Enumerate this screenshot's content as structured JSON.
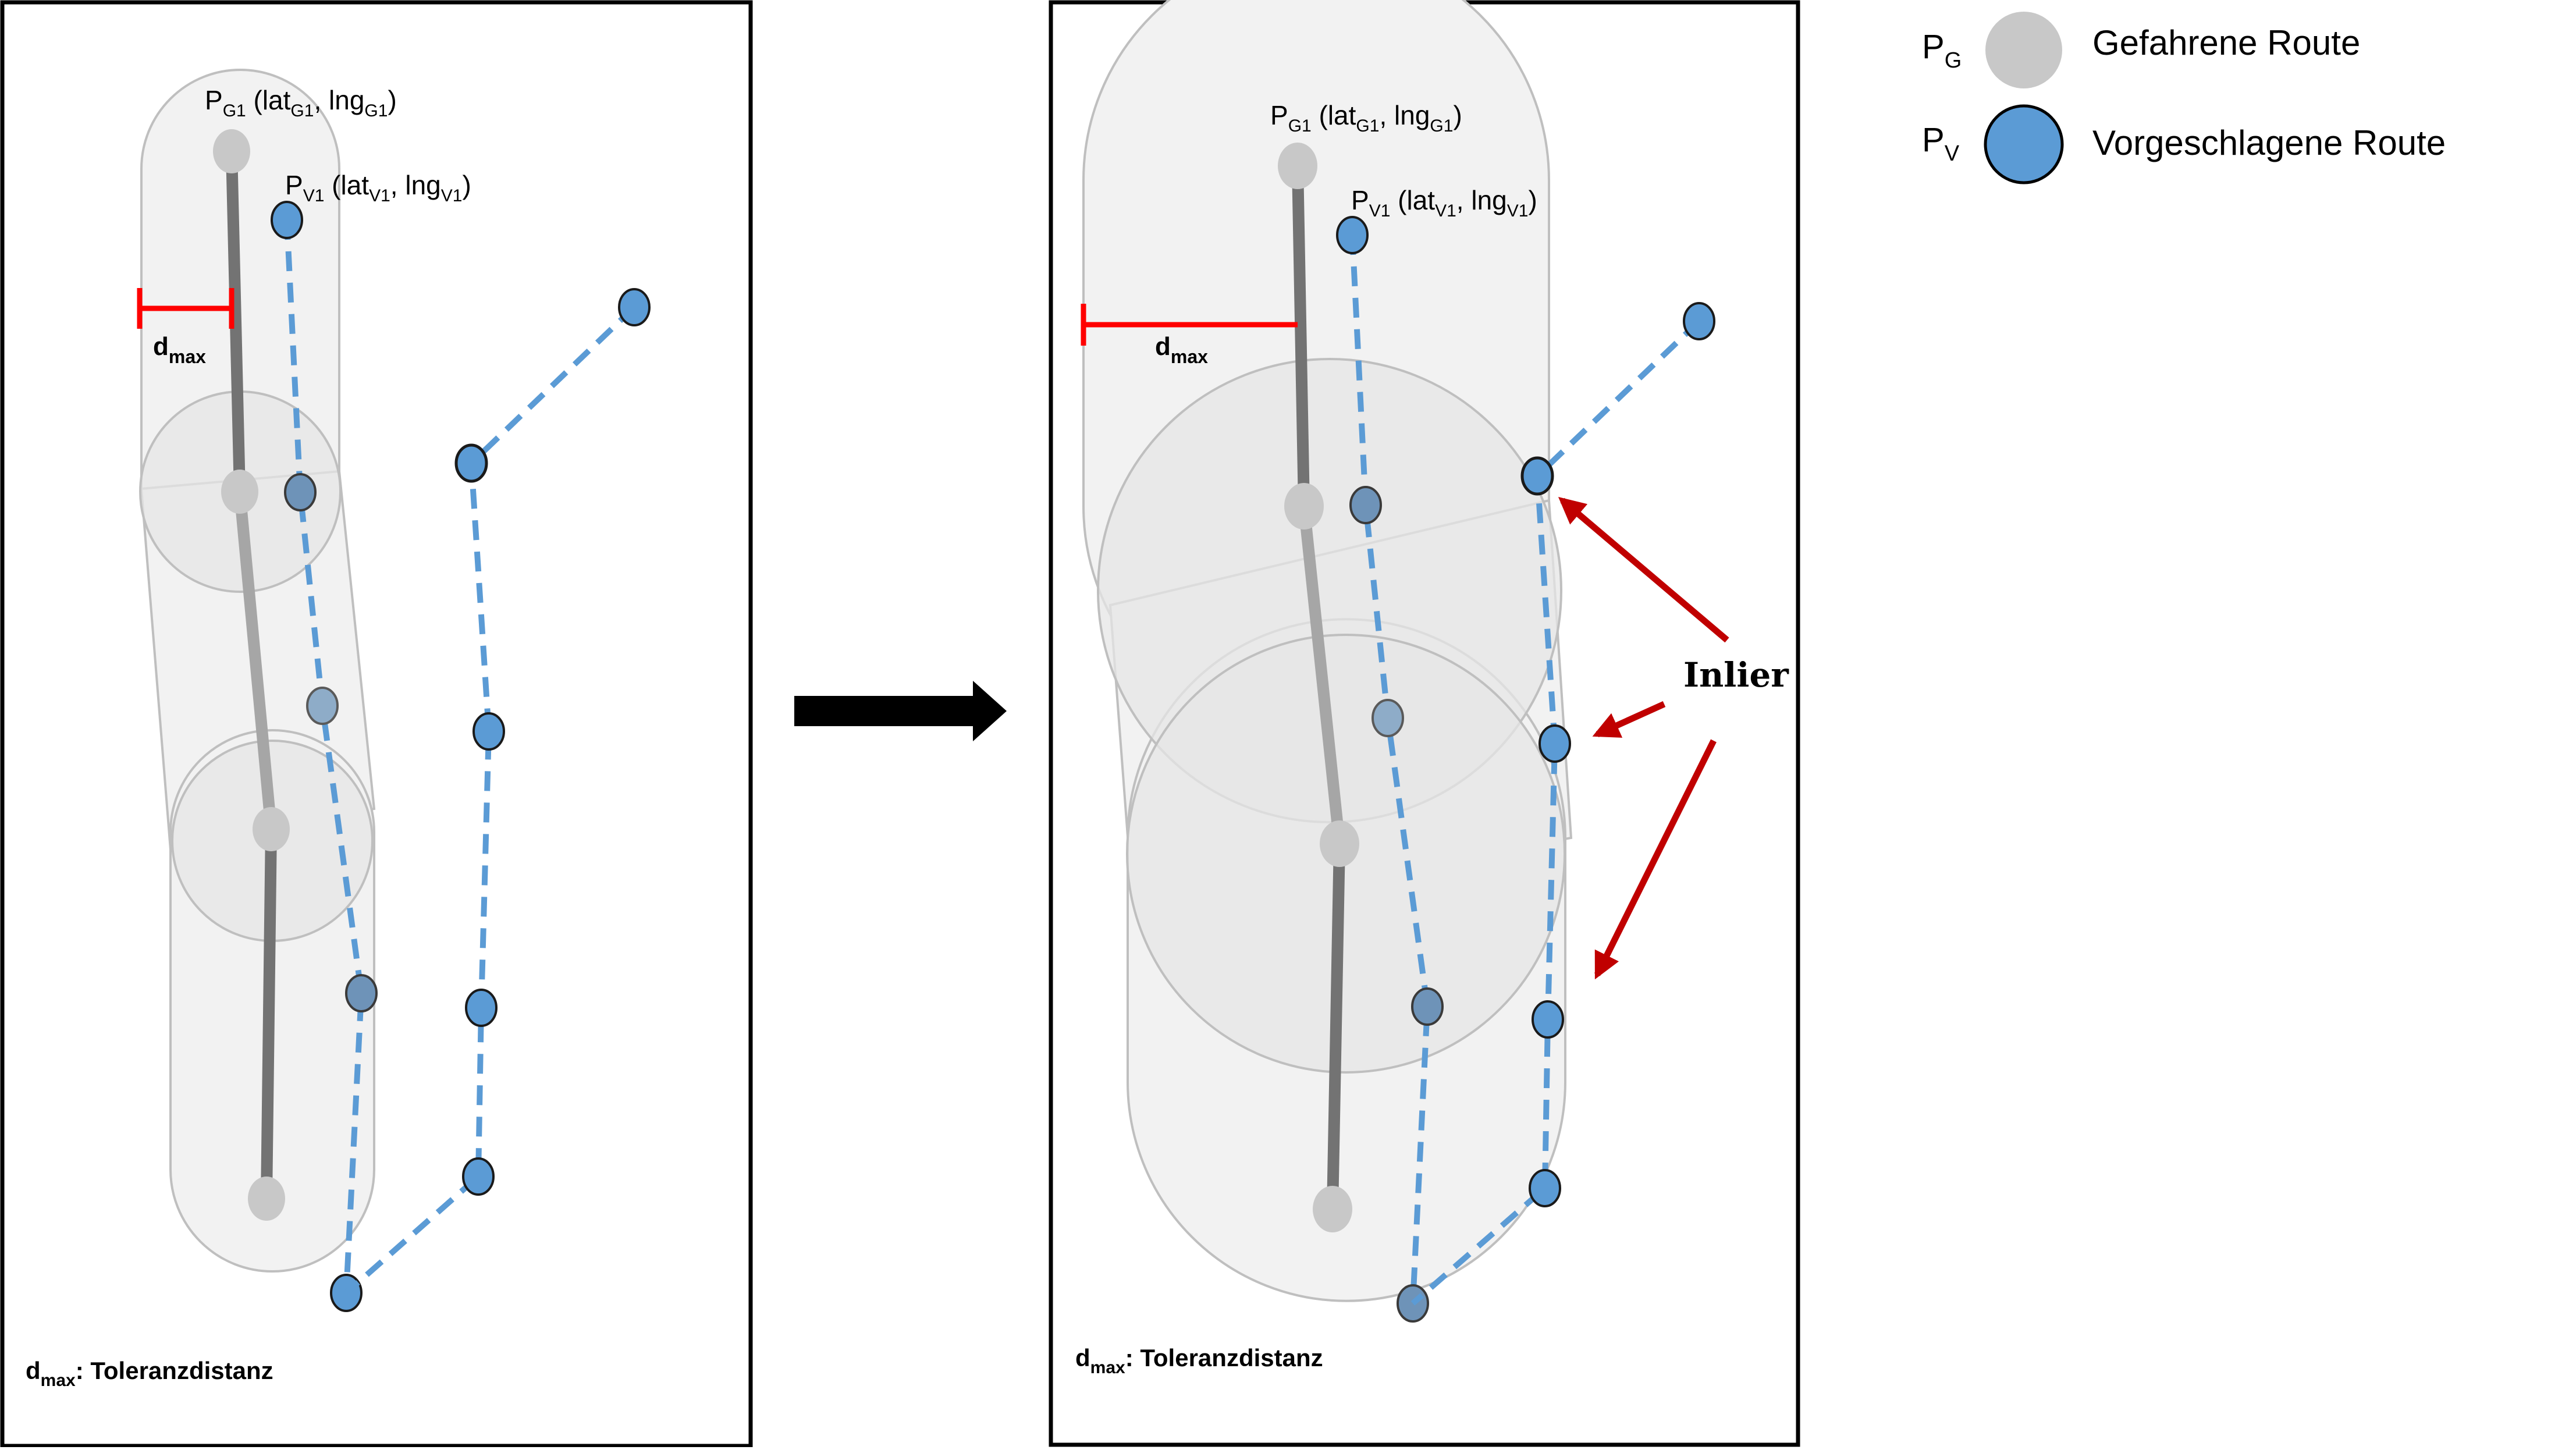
{
  "legend": {
    "driven": {
      "symbol": "P",
      "sub": "G",
      "label": "Gefahrene Route",
      "color": "#c8c8c8"
    },
    "suggested": {
      "symbol": "P",
      "sub": "V",
      "label": "Vorgeschlagene Route",
      "color": "#5b9bd5"
    }
  },
  "points": {
    "g1": {
      "p": "P",
      "psub": "G1",
      "lat": "lat",
      "latsub": "G1",
      "lng": "lng",
      "lngsub": "G1"
    },
    "v1": {
      "p": "P",
      "psub": "V1",
      "lat": "lat",
      "latsub": "V1",
      "lng": "lng",
      "lngsub": "V1"
    }
  },
  "dmax": {
    "symbol": "d",
    "sub": "max",
    "description": ": Toleranzdistanz"
  },
  "inlier": "Inlier",
  "colors": {
    "driven_line": "#737373",
    "driven_line_light": "#a6a6a6",
    "suggested_line": "#5b9bd5",
    "dmax_marker": "#ff0000",
    "inlier_arrow": "#c00000",
    "zone_fill": "#f2f2f2",
    "zone_stroke": "#bfbfbf"
  }
}
